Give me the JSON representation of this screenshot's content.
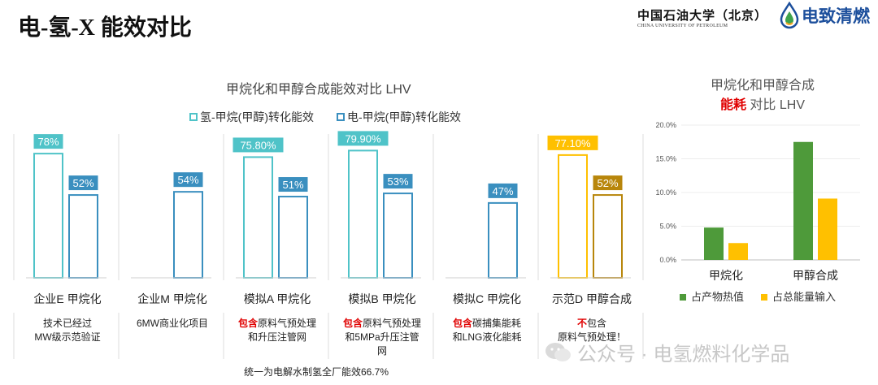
{
  "page": {
    "title": "电-氢-X 能效对比",
    "university_cn": "中国石油大学（北京）",
    "university_en": "CHINA UNIVERSITY OF PETROLEUM",
    "brand": "电致清燃",
    "watermark": "公众号 · 电氢燃料化学品",
    "footer": "统一为电解水制氢全厂能效66.7%"
  },
  "chart_data": [
    {
      "type": "bar",
      "title": "甲烷化和甲醇合成能效对比 LHV",
      "series": [
        {
          "name": "氢-甲烷(甲醇)转化能效",
          "color": "#4fc3c8",
          "values": [
            78,
            null,
            75.8,
            79.9,
            null,
            77.1
          ]
        },
        {
          "name": "电-甲烷(甲醇)转化能效",
          "color": "#3a8fbf",
          "values": [
            52,
            54,
            51,
            53,
            47,
            52
          ]
        }
      ],
      "data_labels": {
        "h2": [
          "78%",
          "",
          "75.80%",
          "79.90%",
          "",
          "77.10%"
        ],
        "elec": [
          "52%",
          "54%",
          "51%",
          "53%",
          "47%",
          "52%"
        ]
      },
      "categories": [
        "企业E 甲烷化",
        "企业M 甲烷化",
        "模拟A 甲烷化",
        "模拟B 甲烷化",
        "模拟C 甲烷化",
        "示范D 甲醇合成"
      ],
      "highlight_category": 5,
      "highlight_colors": {
        "h2": "#ffc000",
        "elec": "#b8860b"
      },
      "notes": [
        [
          {
            "t": "技术已经过",
            "red": false
          },
          {
            "t": "\nMW级示范验证",
            "red": false
          }
        ],
        [
          {
            "t": "6MW商业化项目",
            "red": false
          }
        ],
        [
          {
            "t": "包含",
            "red": true
          },
          {
            "t": "原料气预处理\n和升压注管网",
            "red": false
          }
        ],
        [
          {
            "t": "包含",
            "red": true
          },
          {
            "t": "原料气预处理\n和5MPa升压注管\n网",
            "red": false
          }
        ],
        [
          {
            "t": "包含",
            "red": true
          },
          {
            "t": "碳捕集能耗\n和LNG液化能耗",
            "red": false
          }
        ],
        [
          {
            "t": "不",
            "red": true
          },
          {
            "t": "包含\n原料气预处理！",
            "red": false
          }
        ]
      ]
    },
    {
      "type": "bar",
      "title_line1": "甲烷化和甲醇合成",
      "title_red": "能耗",
      "title_rest": " 对比 LHV",
      "categories": [
        "甲烷化",
        "甲醇合成"
      ],
      "series": [
        {
          "name": "占产物热值",
          "color": "#4e9a3a",
          "values": [
            4.8,
            17.5
          ]
        },
        {
          "name": "占总能量输入",
          "color": "#ffc000",
          "values": [
            2.5,
            9.1
          ]
        }
      ],
      "ylim": [
        0,
        20
      ],
      "yticks": [
        "0.0%",
        "5.0%",
        "10.0%",
        "15.0%",
        "20.0%"
      ]
    }
  ]
}
